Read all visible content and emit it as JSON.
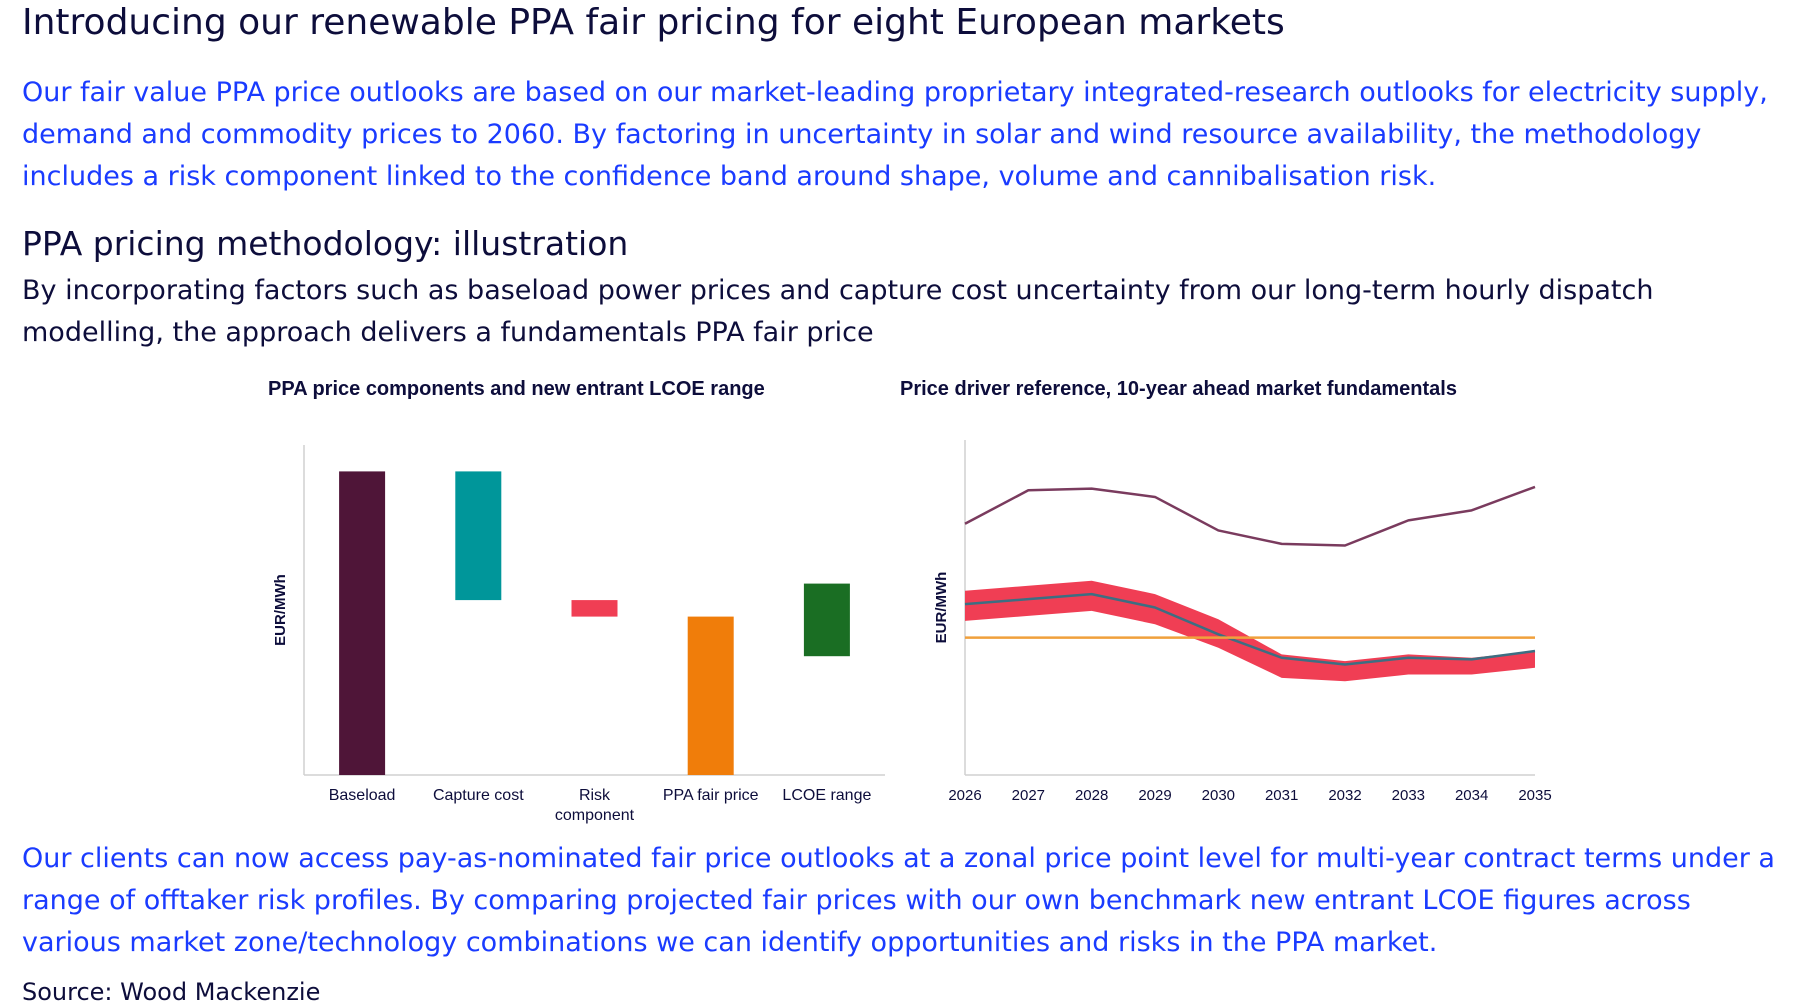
{
  "header": {
    "title": "Introducing our renewable PPA fair pricing for eight European markets"
  },
  "intro": {
    "text": "Our fair value PPA price outlooks are based on our market-leading proprietary integrated-research outlooks for electricity supply, demand and commodity prices to 2060. By factoring in uncertainty in solar and wind resource availability, the methodology includes a risk component linked to the confidence band around shape, volume and cannibalisation risk."
  },
  "methodology": {
    "title": "PPA pricing methodology: illustration",
    "description": "By incorporating factors such as baseload power prices and capture cost uncertainty from our long-term hourly dispatch modelling, the approach delivers a fundamentals PPA fair price"
  },
  "clients": {
    "text": "Our clients can now access pay-as-nominated fair price outlooks at a zonal price point level for multi-year contract terms under a range of offtaker risk profiles. By comparing projected fair prices with our own benchmark new entrant LCOE figures across various market zone/technology combinations we can identify opportunities and risks in the PPA market."
  },
  "source": {
    "text": "Source: Wood Mackenzie"
  },
  "chart_data": [
    {
      "type": "bar",
      "subtype": "waterfall",
      "title": "PPA price components and new entrant LCOE range",
      "xlabel": "",
      "ylabel": "EUR/MWh",
      "ylim": [
        0,
        100
      ],
      "y_ticks_shown": false,
      "grid": false,
      "legend": "none",
      "categories": [
        "Baseload",
        "Capture cost",
        "Risk\ncomponent",
        "PPA fair price",
        "LCOE range"
      ],
      "series": [
        {
          "bars": [
            {
              "category": "Baseload",
              "bottom": 0,
              "top": 92,
              "color": "#4f1538"
            },
            {
              "category": "Capture cost",
              "bottom": 53,
              "top": 92,
              "color": "#00969a"
            },
            {
              "category": "Risk\ncomponent",
              "bottom": 48,
              "top": 53,
              "color": "#f03e54"
            },
            {
              "category": "PPA fair price",
              "bottom": 0,
              "top": 48,
              "color": "#f07d0a"
            },
            {
              "category": "LCOE range",
              "bottom": 36,
              "top": 58,
              "color": "#1a6e23"
            }
          ]
        }
      ]
    },
    {
      "type": "line",
      "title": "Price driver reference, 10-year ahead market fundamentals",
      "xlabel": "",
      "ylabel": "EUR/MWh",
      "ylim": [
        0,
        100
      ],
      "y_ticks_shown": false,
      "grid": false,
      "legend": "none",
      "x": [
        "2026",
        "2027",
        "2028",
        "2029",
        "2030",
        "2031",
        "2032",
        "2033",
        "2034",
        "2035"
      ],
      "series": [
        {
          "values": [
            75,
            85,
            85.5,
            83,
            73,
            69,
            68.5,
            76,
            79,
            86
          ],
          "color": "#7a3b5e",
          "style": "line"
        },
        {
          "values": [
            55,
            56.5,
            58,
            54,
            46.5,
            36,
            34,
            36,
            35,
            37
          ],
          "color": "#f03e54",
          "style": "band-upper"
        },
        {
          "values": [
            46,
            47.5,
            49,
            45,
            38,
            29,
            28,
            30,
            30,
            32
          ],
          "color": "#f03e54",
          "style": "band-lower"
        },
        {
          "values": [
            51,
            52.5,
            54,
            50,
            42,
            35,
            33,
            35,
            34.5,
            37
          ],
          "color": "#3d6e82",
          "style": "line"
        },
        {
          "values": [
            41,
            41,
            41,
            41,
            41,
            41,
            41,
            41,
            41,
            41
          ],
          "color": "#f0a03c",
          "style": "line"
        }
      ]
    }
  ]
}
